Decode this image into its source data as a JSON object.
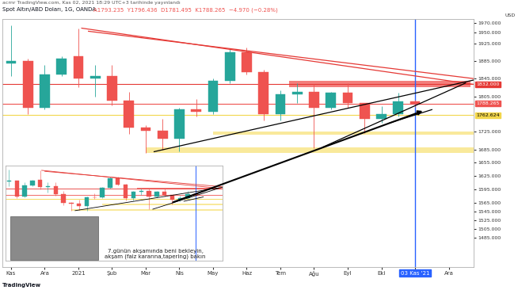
{
  "header": "acrnr TradingView.com, Kas 02, 2021 18:29 UTC+3 tarihinde yayınlandı",
  "chart_data": {
    "type": "candlestick",
    "title": "Spot Altın/ABD Doları, 1G, OANDA",
    "ohlc_label": "A1793.235  Y1796.436  D1781.495  K1788.265  −4.970 (−0.28%)",
    "y_unit": "USD",
    "categories": [
      "Kas",
      null,
      "Ara",
      null,
      "2021",
      null,
      "Şub",
      null,
      "Mar",
      null,
      "Nis",
      null,
      "May",
      null,
      "Haz",
      null,
      "Tem",
      null,
      "Ağu",
      null,
      "Eyl",
      null,
      "Eki",
      null,
      "03 Kas '21",
      null,
      "Ara",
      null
    ],
    "open": [
      1880,
      1885,
      1780,
      1855,
      1895,
      1845,
      1850,
      1795,
      1735,
      1728,
      1710,
      1775,
      1770,
      1840,
      1905,
      1860,
      1765,
      1810,
      1815,
      1780,
      1813,
      1790,
      1755,
      1765,
      1793.235,
      null,
      null,
      null
    ],
    "high": [
      1965,
      1890,
      1875,
      1895,
      1959,
      1875,
      1875,
      1815,
      1740,
      1755,
      1780,
      1798,
      1845,
      1913,
      1916,
      1865,
      1818,
      1834,
      1832,
      1815,
      1834,
      1790,
      1782,
      1814,
      1796.436,
      null,
      null,
      null
    ],
    "low": [
      1850,
      1765,
      1775,
      1850,
      1825,
      1805,
      1785,
      1720,
      1677,
      1684,
      1680,
      1760,
      1765,
      1835,
      1855,
      1750,
      1750,
      1790,
      1688,
      1775,
      1780,
      1722,
      1746,
      1760,
      1781.495,
      null,
      null,
      null
    ],
    "close": [
      1885,
      1780,
      1855,
      1890,
      1845,
      1850,
      1795,
      1735,
      1728,
      1710,
      1775,
      1770,
      1840,
      1905,
      1860,
      1765,
      1810,
      1815,
      1780,
      1813,
      1790,
      1755,
      1765,
      1793,
      1788.265,
      null,
      null,
      null
    ],
    "ylim": [
      1420,
      1980
    ],
    "yticks": [
      {
        "value": 1485,
        "label": "1485.000"
      },
      {
        "value": 1505,
        "label": "1505.000"
      },
      {
        "value": 1525,
        "label": "1525.000"
      },
      {
        "value": 1545,
        "label": "1545.000"
      },
      {
        "value": 1565,
        "label": "1565.000"
      },
      {
        "value": 1595,
        "label": "1595.000"
      },
      {
        "value": 1625,
        "label": "1625.000"
      },
      {
        "value": 1655,
        "label": "1655.000"
      },
      {
        "value": 1685,
        "label": "1685.000"
      },
      {
        "value": 1725,
        "label": "1725.000"
      },
      {
        "value": 1805,
        "label": "1805.000"
      },
      {
        "value": 1845,
        "label": "1845.000"
      },
      {
        "value": 1885,
        "label": "1885.000"
      },
      {
        "value": 1925,
        "label": "1925.000"
      },
      {
        "value": 1950,
        "label": "1950.000"
      },
      {
        "value": 1970,
        "label": "1970.000"
      }
    ],
    "levels": [
      {
        "value": 1832,
        "label": "1832.000",
        "color": "#e53935"
      },
      {
        "value": 1788.265,
        "label": "1788.265",
        "color": "#ef5350"
      },
      {
        "value": 1762.624,
        "label": "1762.624",
        "color": "#f2d64b"
      }
    ],
    "zones": [
      {
        "range": [
          1825,
          1840
        ],
        "from": 16.5,
        "to": 27.3,
        "color": "#ef5350"
      },
      {
        "range": [
          1718,
          1726
        ],
        "from": 12,
        "to": 27.5,
        "color": "#f7e27a"
      },
      {
        "range": [
          1678,
          1690
        ],
        "from": 8,
        "to": 27.5,
        "color": "#f7e27a"
      }
    ],
    "trendlines": [
      {
        "start": [
          4.2,
          1959
        ],
        "end": [
          27.5,
          1832
        ],
        "color": "#e53935"
      },
      {
        "start": [
          4.6,
          1952
        ],
        "end": [
          27.5,
          1845
        ],
        "color": "#e53935"
      },
      {
        "start": [
          8.5,
          1680
        ],
        "end": [
          27.5,
          1842
        ],
        "color": "#000000"
      },
      {
        "start": [
          18.5,
          1690
        ],
        "end": [
          27,
          1835
        ],
        "color": "#000000"
      },
      {
        "start": [
          22.5,
          1745
        ],
        "end": [
          25,
          1775
        ],
        "color": "#000000"
      }
    ],
    "marker": {
      "category": "03 Kas '21",
      "color": "#2962ff"
    }
  },
  "caption": "7.günün akşamında beni bekleyin,\nakşam (faiz kararına,tapering) bakın",
  "footer": "TradingView"
}
